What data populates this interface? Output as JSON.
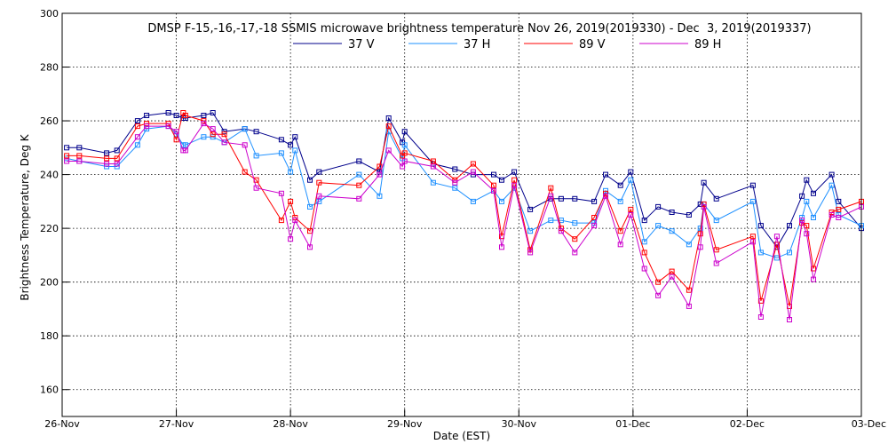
{
  "chart_data": {
    "type": "line",
    "title": "DMSP F-15,-16,-17,-18 SSMIS microwave brightness temperature Nov 26, 2019(2019330) - Dec  3, 2019(2019337)",
    "xlabel": "Date (EST)",
    "ylabel": "Brightness Temperature, Deg K",
    "ylim": [
      150,
      300
    ],
    "xlim": [
      0,
      7
    ],
    "y_ticks": [
      160,
      180,
      200,
      220,
      240,
      260,
      280,
      300
    ],
    "x_tick_values": [
      0,
      1,
      2,
      3,
      4,
      5,
      6,
      7
    ],
    "x_tick_labels": [
      "26-Nov",
      "27-Nov",
      "28-Nov",
      "29-Nov",
      "30-Nov",
      "01-Dec",
      "02-Dec",
      "03-Dec"
    ],
    "grid": true,
    "legend_position": "top",
    "series": [
      {
        "name": "37 V",
        "color": "#00008b",
        "x": [
          0.04,
          0.15,
          0.39,
          0.48,
          0.66,
          0.74,
          0.93,
          1.0,
          1.06,
          1.08,
          1.24,
          1.32,
          1.42,
          1.6,
          1.7,
          1.92,
          2.0,
          2.04,
          2.17,
          2.25,
          2.6,
          2.78,
          2.86,
          2.98,
          3.0,
          3.25,
          3.44,
          3.6,
          3.78,
          3.85,
          3.96,
          4.1,
          4.28,
          4.37,
          4.49,
          4.66,
          4.76,
          4.89,
          4.98,
          5.1,
          5.22,
          5.34,
          5.49,
          5.59,
          5.62,
          5.73,
          6.05,
          6.12,
          6.26,
          6.37,
          6.48,
          6.52,
          6.58,
          6.74,
          6.8,
          7.0
        ],
        "values": [
          250,
          250,
          248,
          249,
          260,
          262,
          263,
          262,
          261,
          261,
          262,
          263,
          256,
          257,
          256,
          253,
          251,
          254,
          238,
          241,
          245,
          241,
          261,
          252,
          256,
          244,
          242,
          240,
          240,
          238,
          241,
          227,
          231,
          231,
          231,
          230,
          240,
          236,
          241,
          223,
          228,
          226,
          225,
          229,
          237,
          231,
          236,
          221,
          213,
          221,
          232,
          238,
          233,
          240,
          230,
          220
        ]
      },
      {
        "name": "37 H",
        "color": "#1e90ff",
        "x": [
          0.04,
          0.15,
          0.39,
          0.48,
          0.66,
          0.74,
          0.93,
          1.0,
          1.06,
          1.08,
          1.24,
          1.32,
          1.42,
          1.6,
          1.7,
          1.92,
          2.0,
          2.04,
          2.17,
          2.25,
          2.6,
          2.78,
          2.86,
          2.98,
          3.0,
          3.25,
          3.44,
          3.6,
          3.78,
          3.85,
          3.96,
          4.1,
          4.28,
          4.37,
          4.49,
          4.66,
          4.76,
          4.89,
          4.98,
          5.1,
          5.22,
          5.34,
          5.49,
          5.59,
          5.62,
          5.73,
          6.05,
          6.12,
          6.26,
          6.37,
          6.48,
          6.52,
          6.58,
          6.74,
          6.8,
          7.0
        ],
        "values": [
          246,
          245,
          243,
          243,
          251,
          257,
          258,
          255,
          251,
          251,
          254,
          254,
          252,
          257,
          247,
          248,
          241,
          249,
          228,
          230,
          240,
          232,
          256,
          246,
          251,
          237,
          235,
          230,
          234,
          230,
          235,
          219,
          223,
          223,
          222,
          222,
          234,
          230,
          238,
          215,
          221,
          219,
          214,
          220,
          229,
          223,
          230,
          211,
          209,
          211,
          224,
          230,
          224,
          236,
          225,
          221
        ]
      },
      {
        "name": "89 V",
        "color": "#ff0000",
        "x": [
          0.04,
          0.15,
          0.39,
          0.48,
          0.66,
          0.74,
          0.93,
          1.0,
          1.06,
          1.08,
          1.24,
          1.32,
          1.42,
          1.6,
          1.7,
          1.92,
          2.0,
          2.04,
          2.17,
          2.25,
          2.6,
          2.78,
          2.86,
          2.98,
          3.0,
          3.25,
          3.44,
          3.6,
          3.78,
          3.85,
          3.96,
          4.1,
          4.28,
          4.37,
          4.49,
          4.66,
          4.76,
          4.89,
          4.98,
          5.1,
          5.22,
          5.34,
          5.49,
          5.59,
          5.62,
          5.73,
          6.05,
          6.12,
          6.26,
          6.37,
          6.48,
          6.52,
          6.58,
          6.74,
          6.8,
          7.0
        ],
        "values": [
          247,
          247,
          246,
          246,
          258,
          259,
          259,
          253,
          263,
          262,
          260,
          255,
          255,
          241,
          238,
          223,
          230,
          224,
          219,
          237,
          236,
          243,
          258,
          247,
          248,
          245,
          238,
          244,
          236,
          217,
          238,
          212,
          235,
          220,
          216,
          224,
          233,
          219,
          227,
          211,
          200,
          204,
          197,
          218,
          229,
          212,
          217,
          193,
          214,
          191,
          222,
          221,
          205,
          226,
          227,
          230
        ]
      },
      {
        "name": "89 H",
        "color": "#cc00cc",
        "x": [
          0.04,
          0.15,
          0.39,
          0.48,
          0.66,
          0.74,
          0.93,
          1.0,
          1.06,
          1.08,
          1.24,
          1.32,
          1.42,
          1.6,
          1.7,
          1.92,
          2.0,
          2.04,
          2.17,
          2.25,
          2.6,
          2.78,
          2.86,
          2.98,
          3.0,
          3.25,
          3.44,
          3.6,
          3.78,
          3.85,
          3.96,
          4.1,
          4.28,
          4.37,
          4.49,
          4.66,
          4.76,
          4.89,
          4.98,
          5.1,
          5.22,
          5.34,
          5.49,
          5.59,
          5.62,
          5.73,
          6.05,
          6.12,
          6.26,
          6.37,
          6.48,
          6.52,
          6.58,
          6.74,
          6.8,
          7.0
        ],
        "values": [
          245,
          245,
          244,
          244,
          254,
          258,
          258,
          256,
          249,
          249,
          259,
          257,
          252,
          251,
          235,
          233,
          216,
          223,
          213,
          232,
          231,
          240,
          249,
          243,
          245,
          243,
          237,
          241,
          234,
          213,
          236,
          211,
          232,
          219,
          211,
          221,
          232,
          214,
          225,
          205,
          195,
          202,
          191,
          213,
          228,
          207,
          215,
          187,
          217,
          186,
          223,
          218,
          201,
          225,
          224,
          228
        ]
      }
    ]
  }
}
